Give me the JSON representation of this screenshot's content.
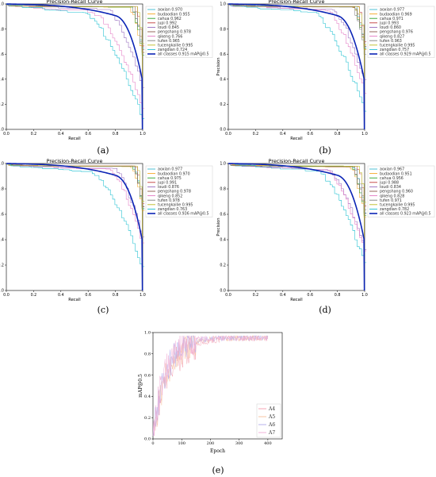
{
  "chart_data": [
    {
      "panel": "(a)",
      "type": "line",
      "title": "Precision-Recall Curve",
      "xlabel": "Recall",
      "ylabel": "Precision",
      "xlim": [
        0,
        1
      ],
      "ylim": [
        0,
        1
      ],
      "xticks": [
        "0.0",
        "0.2",
        "0.4",
        "0.6",
        "0.8",
        "1.0"
      ],
      "yticks": [
        "0.0",
        "0.2",
        "0.4",
        "0.6",
        "0.8",
        "1.0"
      ],
      "legend_position": "right",
      "series": [
        {
          "name": "aoxian 0.970",
          "color": "#3ebcd2"
        },
        {
          "name": "budaodian 0.955",
          "color": "#f5a623"
        },
        {
          "name": "cahua 0.962",
          "color": "#2ca02c"
        },
        {
          "name": "jupi 0.992",
          "color": "#c03a3a"
        },
        {
          "name": "loudi 0.845",
          "color": "#9467bd"
        },
        {
          "name": "pengshang 0.978",
          "color": "#8c564b"
        },
        {
          "name": "qikeng 0.766",
          "color": "#e377c2"
        },
        {
          "name": "tufen 0.965",
          "color": "#7f7f7f"
        },
        {
          "name": "tucengkailie 0.995",
          "color": "#bcbd22"
        },
        {
          "name": "zangdian 0.724",
          "color": "#17becf"
        },
        {
          "name": "all classes 0.915 mAP@0.5",
          "color": "#0b24b5",
          "bold": true
        }
      ]
    },
    {
      "panel": "(b)",
      "type": "line",
      "title": "Precision-Recall Curve",
      "xlabel": "Recall",
      "ylabel": "Precision",
      "xlim": [
        0,
        1
      ],
      "ylim": [
        0,
        1
      ],
      "xticks": [
        "0.0",
        "0.2",
        "0.4",
        "0.6",
        "0.8",
        "1.0"
      ],
      "yticks": [
        "0.0",
        "0.2",
        "0.4",
        "0.6",
        "0.8",
        "1.0"
      ],
      "legend_position": "right",
      "series": [
        {
          "name": "aoxian 0.977",
          "color": "#3ebcd2"
        },
        {
          "name": "budaodian 0.969",
          "color": "#f5a623"
        },
        {
          "name": "cahua 0.971",
          "color": "#2ca02c"
        },
        {
          "name": "jupi 0.993",
          "color": "#c03a3a"
        },
        {
          "name": "loudi 0.860",
          "color": "#9467bd"
        },
        {
          "name": "pengshang 0.976",
          "color": "#8c564b"
        },
        {
          "name": "qikeng 0.827",
          "color": "#e377c2"
        },
        {
          "name": "tufen 0.963",
          "color": "#7f7f7f"
        },
        {
          "name": "tucengkailie 0.995",
          "color": "#bcbd22"
        },
        {
          "name": "zangdian 0.757",
          "color": "#17becf"
        },
        {
          "name": "all classes 0.929 mAP@0.5",
          "color": "#0b24b5",
          "bold": true
        }
      ]
    },
    {
      "panel": "(c)",
      "type": "line",
      "title": "Precision-Recall Curve",
      "xlabel": "Recall",
      "ylabel": "Precision",
      "xlim": [
        0,
        1
      ],
      "ylim": [
        0,
        1
      ],
      "xticks": [
        "0.0",
        "0.2",
        "0.4",
        "0.6",
        "0.8",
        "1.0"
      ],
      "yticks": [
        "0.0",
        "0.2",
        "0.4",
        "0.6",
        "0.8",
        "1.0"
      ],
      "legend_position": "right",
      "series": [
        {
          "name": "aoxian 0.977",
          "color": "#3ebcd2"
        },
        {
          "name": "budaodian 0.970",
          "color": "#f5a623"
        },
        {
          "name": "cahua 0.975",
          "color": "#2ca02c"
        },
        {
          "name": "jupi 0.991",
          "color": "#c03a3a"
        },
        {
          "name": "loudi 0.876",
          "color": "#9467bd"
        },
        {
          "name": "pengshang 0.978",
          "color": "#8c564b"
        },
        {
          "name": "qikeng 0.852",
          "color": "#e377c2"
        },
        {
          "name": "tufen 0.978",
          "color": "#7f7f7f"
        },
        {
          "name": "tucengkailie 0.995",
          "color": "#bcbd22"
        },
        {
          "name": "zangdian 0.763",
          "color": "#17becf"
        },
        {
          "name": "all classes 0.936 mAP@0.5",
          "color": "#0b24b5",
          "bold": true
        }
      ]
    },
    {
      "panel": "(d)",
      "type": "line",
      "title": "Precision-Recall Curve",
      "xlabel": "Recall",
      "ylabel": "Precision",
      "xlim": [
        0,
        1
      ],
      "ylim": [
        0,
        1
      ],
      "xticks": [
        "0.0",
        "0.2",
        "0.4",
        "0.6",
        "0.8",
        "1.0"
      ],
      "yticks": [
        "0.0",
        "0.2",
        "0.4",
        "0.6",
        "0.8",
        "1.0"
      ],
      "legend_position": "right",
      "series": [
        {
          "name": "aoxian 0.967",
          "color": "#3ebcd2"
        },
        {
          "name": "budaodian 0.951",
          "color": "#f5a623"
        },
        {
          "name": "cahua 0.956",
          "color": "#2ca02c"
        },
        {
          "name": "jupi 0.988",
          "color": "#c03a3a"
        },
        {
          "name": "loudi 0.834",
          "color": "#9467bd"
        },
        {
          "name": "pengshang 0.960",
          "color": "#8c564b"
        },
        {
          "name": "qikeng 0.828",
          "color": "#e377c2"
        },
        {
          "name": "tufen 0.971",
          "color": "#7f7f7f"
        },
        {
          "name": "tucengkailie 0.995",
          "color": "#bcbd22"
        },
        {
          "name": "zangdian 0.782",
          "color": "#17becf"
        },
        {
          "name": "all classes 0.923 mAP@0.5",
          "color": "#0b24b5",
          "bold": true
        }
      ]
    },
    {
      "panel": "(e)",
      "type": "line",
      "title": "",
      "xlabel": "Epoch",
      "ylabel": "mAP@0.5",
      "xlim": [
        0,
        450
      ],
      "ylim": [
        0,
        1
      ],
      "xticks": [
        "0",
        "100",
        "200",
        "300",
        "400"
      ],
      "yticks": [
        "0.0",
        "0.2",
        "0.4",
        "0.6",
        "0.8",
        "1.0"
      ],
      "legend_position": "bottom-right",
      "series": [
        {
          "name": "A4",
          "color": "#f4a6b6"
        },
        {
          "name": "A5",
          "color": "#f7c6a3"
        },
        {
          "name": "A6",
          "color": "#b7b0ee"
        },
        {
          "name": "A7",
          "color": "#f2b3d9"
        }
      ]
    }
  ],
  "captions": [
    "(a)",
    "(b)",
    "(c)",
    "(d)",
    "(e)"
  ]
}
